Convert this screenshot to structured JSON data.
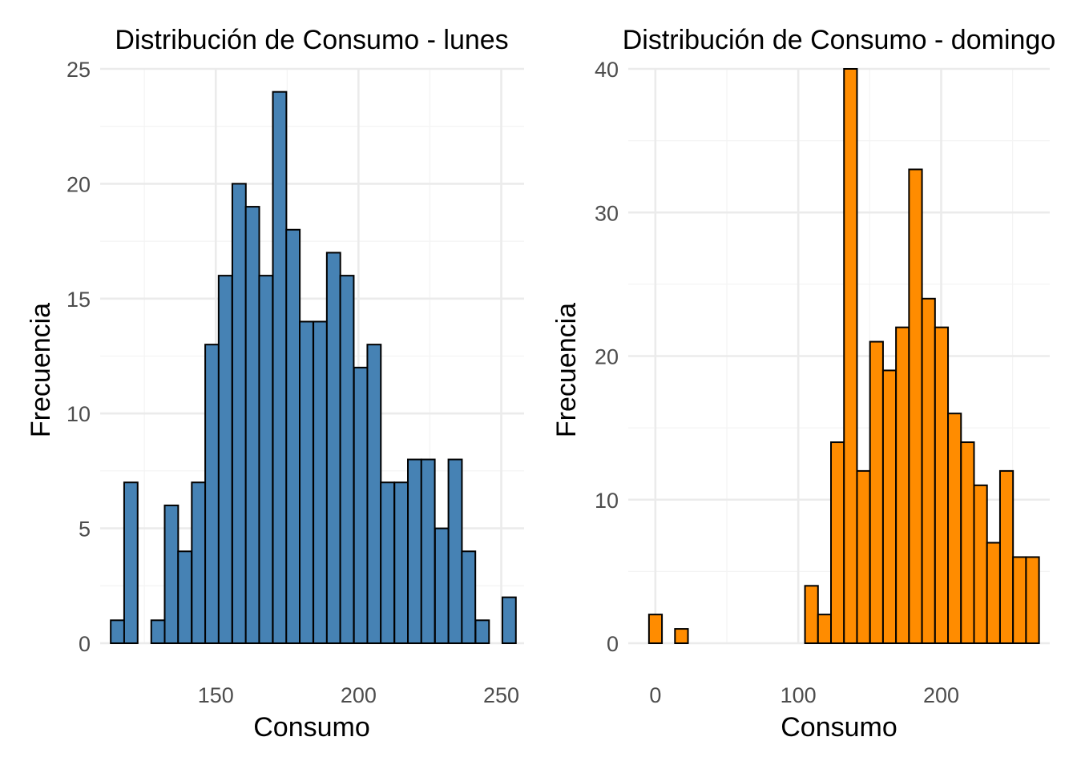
{
  "chart_data": [
    {
      "type": "bar",
      "title": "Distribución de Consumo - lunes",
      "xlabel": "Consumo",
      "ylabel": "Frecuencia",
      "fill_color": "#4682B4",
      "xlim": [
        109.5,
        258
      ],
      "ylim": [
        0,
        25
      ],
      "xticks": [
        150,
        200,
        250
      ],
      "yticks": [
        0,
        5,
        10,
        15,
        20,
        25
      ],
      "grid": true,
      "bin_width": 4.73,
      "bin_starts": [
        113.2,
        117.9,
        122.6,
        127.4,
        132.1,
        136.8,
        141.6,
        146.3,
        151.0,
        155.8,
        160.5,
        165.2,
        170.0,
        174.7,
        179.4,
        184.2,
        188.9,
        193.6,
        198.4,
        203.1,
        207.8,
        212.6,
        217.3,
        222.0,
        226.8,
        231.5,
        236.2,
        241.0,
        245.7,
        250.4
      ],
      "values": [
        1,
        7,
        0,
        1,
        6,
        4,
        7,
        13,
        16,
        20,
        19,
        16,
        24,
        18,
        14,
        14,
        17,
        16,
        12,
        13,
        7,
        7,
        8,
        8,
        5,
        8,
        4,
        1,
        0,
        2
      ]
    },
    {
      "type": "bar",
      "title": "Distribución de Consumo - domingo",
      "xlabel": "Consumo",
      "ylabel": "Frecuencia",
      "fill_color": "#FF8C00",
      "xlim": [
        -19,
        276
      ],
      "ylim": [
        0,
        40
      ],
      "xticks": [
        0,
        100,
        200
      ],
      "yticks": [
        0,
        10,
        20,
        30,
        40
      ],
      "grid": true,
      "bin_width": 9.1,
      "bin_starts": [
        -4.5,
        4.6,
        13.7,
        22.8,
        31.9,
        41.0,
        50.1,
        59.2,
        68.3,
        77.4,
        86.5,
        95.6,
        104.7,
        113.8,
        122.9,
        132.0,
        141.1,
        150.2,
        159.3,
        168.4,
        177.5,
        186.6,
        195.7,
        204.8,
        213.9,
        223.0,
        232.1,
        241.2,
        250.3,
        259.4
      ],
      "values": [
        2,
        0,
        1,
        0,
        0,
        0,
        0,
        0,
        0,
        0,
        0,
        0,
        4,
        2,
        14,
        40,
        12,
        21,
        19,
        22,
        33,
        24,
        22,
        16,
        14,
        11,
        7,
        12,
        6,
        6
      ]
    }
  ]
}
